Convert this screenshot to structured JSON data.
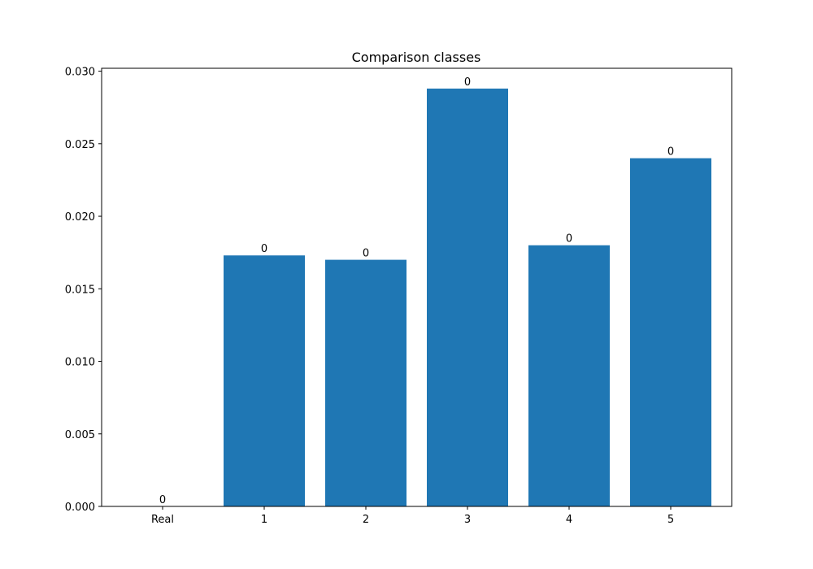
{
  "chart_data": {
    "type": "bar",
    "title": "Comparison classes",
    "xlabel": "",
    "ylabel": "",
    "categories": [
      "Real",
      "1",
      "2",
      "3",
      "4",
      "5"
    ],
    "values": [
      0.0,
      0.0173,
      0.017,
      0.0288,
      0.018,
      0.024
    ],
    "data_labels": [
      "0",
      "0",
      "0",
      "0",
      "0",
      "0"
    ],
    "ylim": [
      0,
      0.0302
    ],
    "yticks": [
      0.0,
      0.005,
      0.01,
      0.015,
      0.02,
      0.025,
      0.03
    ],
    "ytick_labels": [
      "0.000",
      "0.005",
      "0.010",
      "0.015",
      "0.020",
      "0.025",
      "0.030"
    ],
    "bar_color": "#1f77b4",
    "grid": false,
    "legend": "none"
  }
}
